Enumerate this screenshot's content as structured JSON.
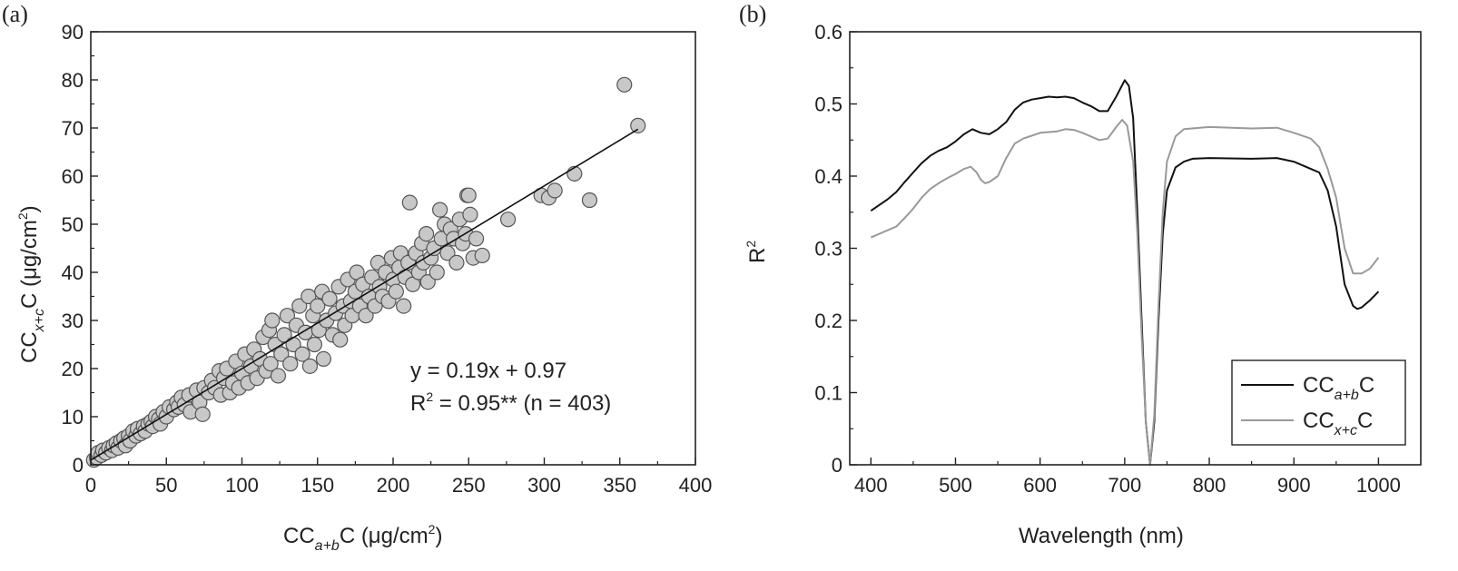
{
  "chart_data": [
    {
      "panel_label": "(a)",
      "type": "scatter",
      "xlabel": {
        "main": "CC",
        "sub": "a+b",
        "rest": "C (μg/cm",
        "sup": "2",
        "end": ")"
      },
      "ylabel": {
        "main": "CC",
        "sub": "x+c",
        "rest": "C (μg/cm",
        "sup": "2",
        "end": ")"
      },
      "xlim": [
        0,
        400
      ],
      "ylim": [
        0,
        90
      ],
      "xticks": [
        "0",
        "50",
        "100",
        "150",
        "200",
        "250",
        "300",
        "350",
        "400"
      ],
      "yticks": [
        "0",
        "10",
        "20",
        "30",
        "40",
        "50",
        "60",
        "70",
        "80",
        "90"
      ],
      "fit": {
        "slope": 0.19,
        "intercept": 0.97,
        "x_range": [
          0,
          362
        ]
      },
      "annotation": {
        "equation": "y = 0.19x + 0.97",
        "r2_prefix": "R",
        "r2_sup": "2",
        "r2_rest": " = 0.95** (n = 403)"
      },
      "marker_fill": "#c8c8c8",
      "marker_edge": "#555555",
      "points": [
        [
          2,
          1
        ],
        [
          4,
          1.5
        ],
        [
          5,
          2.5
        ],
        [
          7,
          2
        ],
        [
          8,
          3
        ],
        [
          10,
          2.5
        ],
        [
          12,
          3.5
        ],
        [
          14,
          3
        ],
        [
          15,
          4
        ],
        [
          17,
          4.5
        ],
        [
          18,
          3.5
        ],
        [
          20,
          5
        ],
        [
          22,
          5.5
        ],
        [
          23,
          4
        ],
        [
          25,
          6
        ],
        [
          26,
          5
        ],
        [
          28,
          7
        ],
        [
          30,
          6
        ],
        [
          31,
          7.5
        ],
        [
          33,
          6.5
        ],
        [
          35,
          8
        ],
        [
          36,
          7
        ],
        [
          38,
          8.5
        ],
        [
          40,
          9
        ],
        [
          41,
          8
        ],
        [
          43,
          10
        ],
        [
          45,
          9.5
        ],
        [
          46,
          8.5
        ],
        [
          48,
          11
        ],
        [
          50,
          10
        ],
        [
          52,
          12
        ],
        [
          55,
          11.5
        ],
        [
          57,
          13
        ],
        [
          58,
          12
        ],
        [
          60,
          14
        ],
        [
          62,
          12.5
        ],
        [
          65,
          14.5
        ],
        [
          66,
          11
        ],
        [
          70,
          15.5
        ],
        [
          72,
          13
        ],
        [
          74,
          10.5
        ],
        [
          75,
          16
        ],
        [
          78,
          15
        ],
        [
          80,
          17.5
        ],
        [
          82,
          16
        ],
        [
          85,
          19.5
        ],
        [
          86,
          14.5
        ],
        [
          88,
          18
        ],
        [
          90,
          20
        ],
        [
          92,
          15
        ],
        [
          94,
          17
        ],
        [
          96,
          21.5
        ],
        [
          98,
          16
        ],
        [
          100,
          19
        ],
        [
          102,
          23
        ],
        [
          104,
          17
        ],
        [
          106,
          20.5
        ],
        [
          108,
          24
        ],
        [
          110,
          18
        ],
        [
          112,
          22
        ],
        [
          114,
          26.5
        ],
        [
          116,
          19.5
        ],
        [
          118,
          28
        ],
        [
          119,
          21
        ],
        [
          120,
          30
        ],
        [
          122,
          25
        ],
        [
          124,
          18.5
        ],
        [
          126,
          23
        ],
        [
          128,
          27
        ],
        [
          130,
          31
        ],
        [
          132,
          21
        ],
        [
          134,
          25
        ],
        [
          136,
          29
        ],
        [
          138,
          33
        ],
        [
          140,
          23
        ],
        [
          142,
          27.5
        ],
        [
          144,
          35
        ],
        [
          145,
          20.5
        ],
        [
          147,
          31
        ],
        [
          148,
          25
        ],
        [
          150,
          33
        ],
        [
          151,
          28
        ],
        [
          153,
          36
        ],
        [
          154,
          22
        ],
        [
          156,
          30
        ],
        [
          158,
          34.5
        ],
        [
          160,
          27
        ],
        [
          162,
          31.5
        ],
        [
          164,
          37
        ],
        [
          165,
          26
        ],
        [
          167,
          33
        ],
        [
          168,
          29
        ],
        [
          170,
          38.5
        ],
        [
          172,
          34
        ],
        [
          173,
          31
        ],
        [
          175,
          36
        ],
        [
          176,
          40
        ],
        [
          178,
          33
        ],
        [
          180,
          37.5
        ],
        [
          182,
          31
        ],
        [
          184,
          35
        ],
        [
          186,
          39
        ],
        [
          188,
          33
        ],
        [
          190,
          42
        ],
        [
          191,
          37
        ],
        [
          193,
          35
        ],
        [
          195,
          40
        ],
        [
          197,
          34
        ],
        [
          199,
          43
        ],
        [
          200,
          38.5
        ],
        [
          202,
          36
        ],
        [
          204,
          41
        ],
        [
          205,
          44
        ],
        [
          207,
          33
        ],
        [
          208,
          39
        ],
        [
          210,
          42
        ],
        [
          211,
          54.5
        ],
        [
          213,
          37.5
        ],
        [
          215,
          44
        ],
        [
          217,
          40
        ],
        [
          219,
          46
        ],
        [
          220,
          42
        ],
        [
          222,
          48
        ],
        [
          223,
          38
        ],
        [
          225,
          43
        ],
        [
          227,
          45
        ],
        [
          229,
          40
        ],
        [
          231,
          53
        ],
        [
          232,
          47
        ],
        [
          234,
          50
        ],
        [
          236,
          44
        ],
        [
          238,
          49
        ],
        [
          240,
          47
        ],
        [
          242,
          42
        ],
        [
          244,
          51
        ],
        [
          246,
          46
        ],
        [
          248,
          48
        ],
        [
          249,
          56
        ],
        [
          250,
          56
        ],
        [
          251,
          52
        ],
        [
          253,
          43
        ],
        [
          255,
          47
        ],
        [
          259,
          43.5
        ],
        [
          276,
          51
        ],
        [
          298,
          56
        ],
        [
          303,
          55.5
        ],
        [
          307,
          57
        ],
        [
          320,
          60.5
        ],
        [
          330,
          55
        ],
        [
          353,
          79
        ],
        [
          362,
          70.5
        ]
      ]
    },
    {
      "panel_label": "(b)",
      "type": "line",
      "xlabel": "Wavelength (nm)",
      "ylabel": {
        "main": "R",
        "sup": "2"
      },
      "xlim": [
        375,
        1050
      ],
      "ylim": [
        0,
        0.6
      ],
      "xticks": [
        "400",
        "500",
        "600",
        "700",
        "800",
        "900",
        "1000"
      ],
      "yticks": [
        "0",
        "0.1",
        "0.2",
        "0.3",
        "0.4",
        "0.5",
        "0.6"
      ],
      "legend_position": "bottom-right",
      "series": [
        {
          "name": {
            "main": "CC",
            "sub": "a+b",
            "end": "C"
          },
          "color": "#111111",
          "x": [
            400,
            410,
            420,
            430,
            440,
            450,
            460,
            470,
            480,
            490,
            500,
            510,
            520,
            530,
            540,
            550,
            560,
            570,
            580,
            590,
            600,
            610,
            620,
            630,
            640,
            650,
            660,
            670,
            680,
            690,
            700,
            705,
            710,
            715,
            720,
            725,
            730,
            735,
            740,
            745,
            750,
            760,
            770,
            780,
            800,
            850,
            880,
            900,
            920,
            930,
            940,
            950,
            960,
            970,
            975,
            980,
            990,
            1000
          ],
          "y": [
            0.352,
            0.36,
            0.368,
            0.378,
            0.392,
            0.405,
            0.418,
            0.428,
            0.435,
            0.44,
            0.448,
            0.458,
            0.465,
            0.46,
            0.458,
            0.465,
            0.475,
            0.492,
            0.502,
            0.506,
            0.508,
            0.51,
            0.509,
            0.51,
            0.508,
            0.502,
            0.497,
            0.49,
            0.49,
            0.51,
            0.533,
            0.525,
            0.48,
            0.35,
            0.2,
            0.06,
            0.0,
            0.06,
            0.2,
            0.32,
            0.38,
            0.412,
            0.42,
            0.424,
            0.425,
            0.424,
            0.425,
            0.42,
            0.41,
            0.405,
            0.38,
            0.33,
            0.25,
            0.22,
            0.216,
            0.218,
            0.228,
            0.24
          ]
        },
        {
          "name": {
            "main": "CC",
            "sub": "x+c",
            "end": "C"
          },
          "color": "#999999",
          "x": [
            400,
            410,
            420,
            430,
            440,
            450,
            460,
            470,
            480,
            490,
            500,
            510,
            518,
            525,
            530,
            535,
            540,
            550,
            560,
            570,
            580,
            600,
            620,
            630,
            640,
            650,
            660,
            670,
            680,
            690,
            697,
            703,
            710,
            715,
            720,
            725,
            730,
            735,
            740,
            745,
            750,
            760,
            770,
            800,
            850,
            880,
            900,
            920,
            930,
            940,
            950,
            960,
            970,
            980,
            990,
            1000
          ],
          "y": [
            0.315,
            0.32,
            0.325,
            0.33,
            0.342,
            0.355,
            0.37,
            0.382,
            0.39,
            0.397,
            0.403,
            0.41,
            0.413,
            0.405,
            0.395,
            0.39,
            0.392,
            0.4,
            0.425,
            0.445,
            0.452,
            0.46,
            0.462,
            0.465,
            0.464,
            0.46,
            0.455,
            0.45,
            0.452,
            0.468,
            0.478,
            0.47,
            0.42,
            0.32,
            0.18,
            0.06,
            0.0,
            0.07,
            0.22,
            0.35,
            0.42,
            0.455,
            0.465,
            0.468,
            0.466,
            0.467,
            0.46,
            0.452,
            0.44,
            0.41,
            0.37,
            0.3,
            0.265,
            0.265,
            0.272,
            0.287
          ]
        }
      ]
    }
  ]
}
